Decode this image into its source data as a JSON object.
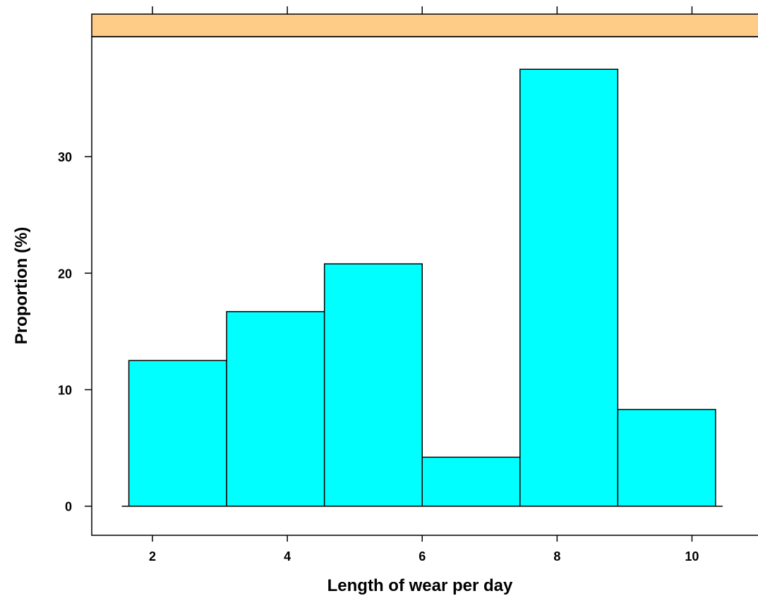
{
  "chart_data": {
    "type": "bar",
    "title": "",
    "xlabel": "Length of wear per day",
    "ylabel": "Proportion (%)",
    "bins": [
      {
        "x0": 1.65,
        "x1": 3.1,
        "value": 12.5
      },
      {
        "x0": 3.1,
        "x1": 4.55,
        "value": 16.7
      },
      {
        "x0": 4.55,
        "x1": 6.0,
        "value": 20.8
      },
      {
        "x0": 6.0,
        "x1": 7.45,
        "value": 4.2
      },
      {
        "x0": 7.45,
        "x1": 8.9,
        "value": 37.5
      },
      {
        "x0": 8.9,
        "x1": 10.35,
        "value": 8.3
      }
    ],
    "xlim": [
      1.1,
      11.0
    ],
    "ylim": [
      -2.5,
      40.3
    ],
    "x_ticks": [
      2,
      4,
      6,
      8,
      10
    ],
    "y_ticks": [
      0,
      10,
      20,
      30
    ],
    "grid": false,
    "colors": {
      "bar_fill": "#00FFFF",
      "bar_stroke": "#000000",
      "strip_fill": "#FFCC88"
    }
  }
}
